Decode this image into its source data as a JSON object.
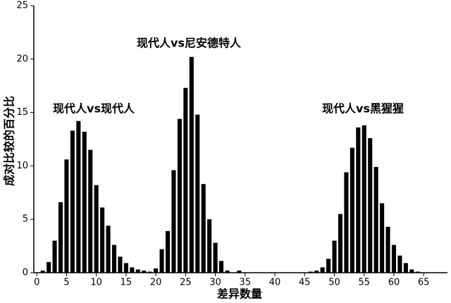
{
  "chart_data": {
    "type": "bar",
    "x_label": "差异数量",
    "y_label": "成对比较的百分比",
    "annotations": [
      "现代人vs现代人",
      "现代人vs尼安德特人",
      "现代人vs黑猩猩"
    ],
    "color": "#000000",
    "x": [
      1,
      2,
      3,
      4,
      5,
      6,
      7,
      8,
      9,
      10,
      11,
      12,
      13,
      14,
      15,
      16,
      17,
      18,
      19,
      20,
      21,
      22,
      23,
      24,
      25,
      26,
      27,
      28,
      29,
      30,
      31,
      32,
      34,
      46,
      47,
      48,
      49,
      50,
      51,
      52,
      53,
      54,
      55,
      56,
      57,
      58,
      59,
      60,
      61,
      62,
      63,
      64
    ],
    "values": [
      0.2,
      1.0,
      3.0,
      6.6,
      10.6,
      13.3,
      14.2,
      13.2,
      11.5,
      8.2,
      6.1,
      4.4,
      2.6,
      1.5,
      0.9,
      0.5,
      0.3,
      0.2,
      0.1,
      0.4,
      2.2,
      3.9,
      9.6,
      14.4,
      17.3,
      20.2,
      14.8,
      8.3,
      5.0,
      2.8,
      1.1,
      0.2,
      0.2,
      0.1,
      0.2,
      0.5,
      1.3,
      3.0,
      5.5,
      9.4,
      11.7,
      13.6,
      13.8,
      12.6,
      9.9,
      6.5,
      4.3,
      2.6,
      1.6,
      0.9,
      0.3,
      0.1
    ],
    "xlim": [
      -0.5,
      69
    ],
    "ylim": [
      0,
      25
    ],
    "xticks": [
      0,
      5,
      10,
      15,
      20,
      25,
      30,
      35,
      40,
      45,
      50,
      55,
      60,
      65
    ],
    "yticks": [
      0,
      5,
      10,
      15,
      20,
      25
    ]
  }
}
